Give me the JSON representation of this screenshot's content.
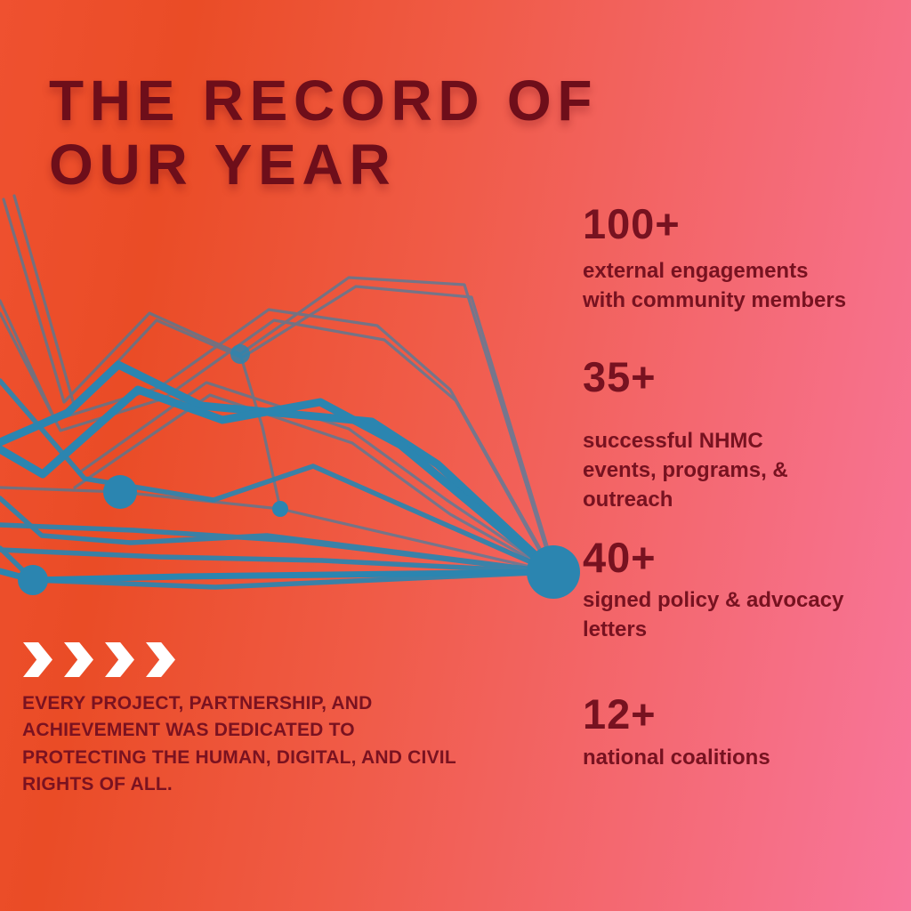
{
  "title": {
    "line1": "THE RECORD OF",
    "line2": "OUR YEAR"
  },
  "stats": [
    {
      "value": "100+",
      "description": "external engagements\nwith community members"
    },
    {
      "value": "35+",
      "description": "successful NHMC\nevents, programs, &\noutreach"
    },
    {
      "value": "40+",
      "description": "signed policy & advocacy\nletters"
    },
    {
      "value": "12+",
      "description": "national coalitions"
    }
  ],
  "footer": {
    "text": "EVERY PROJECT, PARTNERSHIP, AND\nACHIEVEMENT WAS DEDICATED TO\nPROTECTING THE HUMAN, DIGITAL, AND CIVIL\nRIGHTS OF ALL."
  },
  "decor": {
    "chevron_count": 4,
    "line_art_name": "network-line-art"
  },
  "colors": {
    "gradient_left": "#ea4c26",
    "gradient_right": "#f8769c",
    "accent_blue": "#2b85b0",
    "title_maroon": "#6e0e1a",
    "text_maroon": "#771220",
    "chevron_white": "#ffffff"
  }
}
